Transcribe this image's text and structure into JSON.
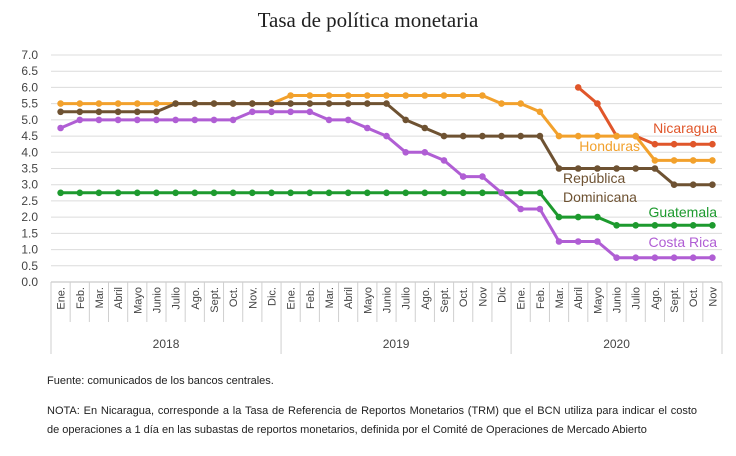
{
  "chart_data": {
    "type": "line",
    "title": "Tasa de política monetaria",
    "xlabel": "",
    "ylabel": "",
    "ylim": [
      0,
      7
    ],
    "yticks": [
      "0.0",
      "0.5",
      "1.0",
      "1.5",
      "2.0",
      "2.5",
      "3.0",
      "3.5",
      "4.0",
      "4.5",
      "5.0",
      "5.5",
      "6.0",
      "6.5",
      "7.0"
    ],
    "grid": true,
    "legend": "inline labels at right",
    "categories": [
      "Ene.",
      "Feb.",
      "Mar.",
      "Abril",
      "Mayo",
      "Junio",
      "Julio",
      "Ago.",
      "Sept.",
      "Oct.",
      "Nov.",
      "Dic.",
      "Ene.",
      "Feb.",
      "Mar.",
      "Abril",
      "Mayo",
      "Junio",
      "Julio",
      "Ago.",
      "Sept.",
      "Oct.",
      "Nov",
      "Dic",
      "Ene.",
      "Feb.",
      "Mar.",
      "Abril",
      "Mayo",
      "Junio",
      "Julio",
      "Ago.",
      "Sept.",
      "Oct.",
      "Nov"
    ],
    "year_groups": [
      {
        "label": "2018",
        "start": 0,
        "end": 11
      },
      {
        "label": "2019",
        "start": 12,
        "end": 23
      },
      {
        "label": "2020",
        "start": 24,
        "end": 34
      }
    ],
    "series": [
      {
        "name": "Nicaragua",
        "color": "#e0562a",
        "values": [
          null,
          null,
          null,
          null,
          null,
          null,
          null,
          null,
          null,
          null,
          null,
          null,
          null,
          null,
          null,
          null,
          null,
          null,
          null,
          null,
          null,
          null,
          null,
          null,
          null,
          null,
          null,
          6.0,
          5.5,
          4.5,
          4.5,
          4.25,
          4.25,
          4.25,
          4.25
        ]
      },
      {
        "name": "Honduras",
        "color": "#f2a12c",
        "values": [
          5.5,
          5.5,
          5.5,
          5.5,
          5.5,
          5.5,
          5.5,
          5.5,
          5.5,
          5.5,
          5.5,
          5.5,
          5.75,
          5.75,
          5.75,
          5.75,
          5.75,
          5.75,
          5.75,
          5.75,
          5.75,
          5.75,
          5.75,
          5.5,
          5.5,
          5.25,
          4.5,
          4.5,
          4.5,
          4.5,
          4.5,
          3.75,
          3.75,
          3.75,
          3.75
        ]
      },
      {
        "name": "República Dominicana",
        "label_lines": [
          "República",
          "Dominicana"
        ],
        "color": "#6e5232",
        "values": [
          5.25,
          5.25,
          5.25,
          5.25,
          5.25,
          5.25,
          5.5,
          5.5,
          5.5,
          5.5,
          5.5,
          5.5,
          5.5,
          5.5,
          5.5,
          5.5,
          5.5,
          5.5,
          5.0,
          4.75,
          4.5,
          4.5,
          4.5,
          4.5,
          4.5,
          4.5,
          3.5,
          3.5,
          3.5,
          3.5,
          3.5,
          3.5,
          3.0,
          3.0,
          3.0
        ]
      },
      {
        "name": "Guatemala",
        "color": "#1d9a2e",
        "values": [
          2.75,
          2.75,
          2.75,
          2.75,
          2.75,
          2.75,
          2.75,
          2.75,
          2.75,
          2.75,
          2.75,
          2.75,
          2.75,
          2.75,
          2.75,
          2.75,
          2.75,
          2.75,
          2.75,
          2.75,
          2.75,
          2.75,
          2.75,
          2.75,
          2.75,
          2.75,
          2.0,
          2.0,
          2.0,
          1.75,
          1.75,
          1.75,
          1.75,
          1.75,
          1.75
        ]
      },
      {
        "name": "Costa Rica",
        "color": "#b05ed4",
        "values": [
          4.75,
          5.0,
          5.0,
          5.0,
          5.0,
          5.0,
          5.0,
          5.0,
          5.0,
          5.0,
          5.25,
          5.25,
          5.25,
          5.25,
          5.0,
          5.0,
          4.75,
          4.5,
          4.0,
          4.0,
          3.75,
          3.25,
          3.25,
          2.75,
          2.25,
          2.25,
          1.25,
          1.25,
          1.25,
          0.75,
          0.75,
          0.75,
          0.75,
          0.75,
          0.75
        ]
      }
    ]
  },
  "notes": {
    "source": "Fuente: comunicados de los bancos centrales.",
    "nota": "NOTA: En Nicaragua, corresponde a la Tasa de Referencia de Reportos Monetarios (TRM) que el BCN utiliza para indicar el costo de operaciones a 1 día en las subastas de reportos monetarios, definida por el Comité de Operaciones de Mercado Abierto"
  }
}
